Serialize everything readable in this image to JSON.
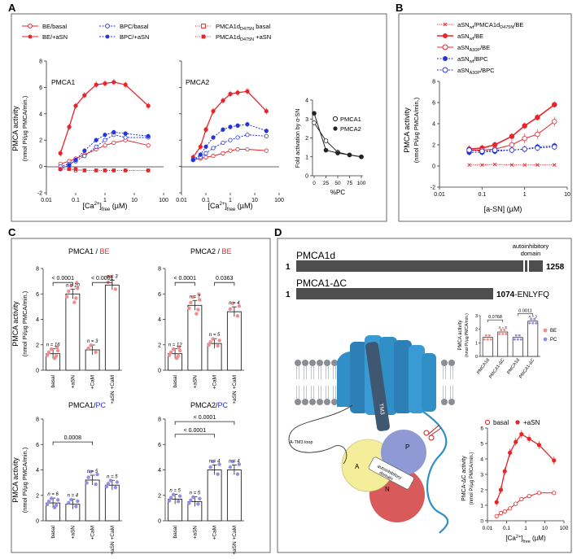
{
  "panel_letters": {
    "A": "A",
    "B": "B",
    "C": "C",
    "D": "D"
  },
  "colors": {
    "red": "#e8242b",
    "blue": "#2434d8",
    "gray": "#555555",
    "dark": "#222222",
    "pink": "#ef8e8e",
    "lilac": "#8f8fe8"
  },
  "panelA": {
    "legend": {
      "be_basal": "BE/basal",
      "be_asn": "BE/+aSN",
      "bpc_basal": "BPC/basal",
      "bpc_asn": "BPC/+aSN",
      "pmca_basal_main": "PMCA1d",
      "pmca_basal_sub": "D475N",
      "pmca_basal_tail": " basal",
      "pmca_asn_main": "PMCA1d",
      "pmca_asn_sub": "D475N",
      "pmca_asn_tail": " +aSN"
    },
    "ylabel1": "PMCA activity",
    "ylabel2": "(nmol Pi/µg PMCA/min.)",
    "xlabel_pre": "[Ca",
    "xlabel_sup": "2+",
    "xlabel_mid": "]",
    "xlabel_sub": "free",
    "xlabel_post": " (µM)",
    "pmca1_label": "PMCA1",
    "pmca2_label": "PMCA2",
    "fold_ylabel": "Fold activation by α-SN",
    "fold_xlabel": "%PC",
    "fold_legend_pmca1": "PMCA1",
    "fold_legend_pmca2": "PMCA2"
  },
  "panelB": {
    "legend": {
      "row1_main": "aSN",
      "row1_sub": "wt",
      "row1_mid": "/PMCA1d",
      "row1_sub2": "D475N",
      "row1_tail": "/BE",
      "row2_main": "aSN",
      "row2_sub": "wt",
      "row2_tail": "/BE",
      "row3_main": "aSN",
      "row3_sub": "A30P",
      "row3_tail": "/BE",
      "row4_main": "aSN",
      "row4_sub": "wt",
      "row4_tail": "/BPC",
      "row5_main": "aSN",
      "row5_sub": "A30P",
      "row5_tail": "/BPC"
    },
    "ylabel1": "PMCA activity",
    "ylabel2": "(nmol Pi/µg PMCA/min.)",
    "xlabel": "[a-SN] (µM)"
  },
  "panelC": {
    "titles": {
      "t1": "PMCA1 / ",
      "t1b": "BE",
      "t2": "PMCA2 / ",
      "t2b": "BE",
      "t3": "PMCA1/",
      "t3b": "PC",
      "t4": "PMCA2/",
      "t4b": "PC"
    },
    "ylabel1": "PMCA activity",
    "ylabel2": "(nmol Pi/µg PMCA/min.)",
    "categories": [
      "basal",
      "+aSN",
      "+CaM",
      "+aSN +CaM"
    ],
    "p_values": {
      "c1a": "< 0.0001",
      "c1b": "< 0.0001",
      "c2a": "< 0.0001",
      "c2b": "0.0363",
      "c3a": "0.0008",
      "c4a": "< 0.0001",
      "c4b": "< 0.0001"
    },
    "n_labels": {
      "c1": [
        "n = 16",
        "n = 10",
        "n = 3",
        "n = 3"
      ],
      "c2": [
        "n = 12",
        "n = 7",
        "n = 5",
        "n = 4"
      ],
      "c3": [
        "n = 6",
        "n = 4",
        "n = 5",
        "n = 5"
      ],
      "c4": [
        "n = 5",
        "n = 5",
        "n = 4",
        "n = 4"
      ]
    }
  },
  "panelD": {
    "pmca1d_label": "PMCA1d",
    "pmca1d_start": "1",
    "pmca1d_end": "1258",
    "autoinhib1": "autoinhibitory",
    "autoinhib2": "domain",
    "dc_label": "PMCA1-ΔC",
    "dc_start": "1",
    "dc_end": "1074",
    "dc_tail": "-ENLYFQ",
    "bar_p1": "0.0768",
    "bar_p2": "0.0011",
    "bar_n_labels": [
      "n = 5",
      "n = 3"
    ],
    "bar_ylabel1": "PMCA activity",
    "bar_ylabel2": "(nmol Pi/µg PMCA/min.)",
    "bar_categories": [
      "PMCA1d",
      "PMCA1-ΔC",
      "PMCA1d",
      "PMCA1-ΔC"
    ],
    "bar_legend_be": "BE",
    "bar_legend_pc": "PC",
    "struct_tm3": "TM3",
    "struct_loop": "A-TM3 loop",
    "struct_A": "A",
    "struct_P": "P",
    "struct_N": "N",
    "struct_auto1": "autoinhibitory",
    "struct_auto2": "domain",
    "dc_curve_legend_basal": "basal",
    "dc_curve_legend_asn": "+aSN",
    "dc_ylabel1": "PMCA-ΔC activity",
    "dc_ylabel2": "(nmol Pi/µg PMCA/min.)"
  },
  "chart_data": [
    {
      "id": "A-PMCA1",
      "type": "line",
      "title": "PMCA1",
      "xscale": "log",
      "xlim": [
        0.01,
        100
      ],
      "ylim": [
        -2,
        8
      ],
      "xticks": [
        "0.01",
        "0.1",
        "1",
        "10",
        "100"
      ],
      "yticks": [
        "-2",
        "0",
        "2",
        "4",
        "6",
        "8"
      ],
      "x": [
        0.03,
        0.06,
        0.1,
        0.2,
        0.5,
        1,
        2,
        5,
        30
      ],
      "series": [
        {
          "name": "BE/basal",
          "values": [
            0.2,
            0.4,
            0.6,
            0.9,
            1.3,
            1.6,
            1.8,
            2.0,
            1.6
          ]
        },
        {
          "name": "BE/+aSN",
          "values": [
            1.0,
            3.0,
            4.6,
            5.4,
            6.2,
            6.3,
            6.4,
            6.2,
            4.6
          ]
        },
        {
          "name": "BPC/basal",
          "values": [
            0.0,
            0.2,
            0.4,
            0.8,
            1.5,
            2.0,
            2.4,
            2.2,
            2.2
          ]
        },
        {
          "name": "BPC/+aSN",
          "values": [
            -0.2,
            0.1,
            0.5,
            1.2,
            2.0,
            2.4,
            2.6,
            2.5,
            2.3
          ]
        },
        {
          "name": "PMCA1dD475N basal",
          "values": [
            -0.2,
            -0.2,
            -0.3,
            -0.3,
            -0.3,
            -0.3,
            -0.3,
            -0.3,
            -0.3
          ]
        },
        {
          "name": "PMCA1dD475N +aSN",
          "values": [
            -0.2,
            -0.2,
            -0.2,
            -0.3,
            -0.3,
            -0.3,
            -0.3,
            -0.3,
            -0.3
          ]
        }
      ]
    },
    {
      "id": "A-PMCA2",
      "type": "line",
      "title": "PMCA2",
      "xscale": "log",
      "xlim": [
        0.01,
        100
      ],
      "ylim": [
        -2,
        8
      ],
      "xticks": [
        "0.01",
        "0.1",
        "1",
        "10",
        "100"
      ],
      "x": [
        0.03,
        0.06,
        0.1,
        0.2,
        0.5,
        1,
        2,
        5,
        30
      ],
      "series": [
        {
          "name": "BE/basal",
          "values": [
            0.5,
            0.6,
            0.7,
            0.8,
            1.0,
            1.2,
            1.3,
            1.3,
            1.2
          ]
        },
        {
          "name": "BE/+aSN",
          "values": [
            0.7,
            1.5,
            2.8,
            4.2,
            5.0,
            5.5,
            5.6,
            5.7,
            4.2
          ]
        },
        {
          "name": "BPC/basal",
          "values": [
            0.5,
            0.7,
            1.0,
            1.4,
            1.8,
            2.0,
            2.2,
            2.4,
            2.3
          ]
        },
        {
          "name": "BPC/+aSN",
          "values": [
            0.5,
            0.9,
            1.5,
            2.2,
            2.8,
            3.0,
            3.1,
            3.2,
            2.7
          ]
        }
      ]
    },
    {
      "id": "A-fold",
      "type": "line",
      "xlabel": "%PC",
      "ylabel": "Fold activation by α-SN",
      "xlim": [
        0,
        100
      ],
      "ylim": [
        0,
        4
      ],
      "xticks": [
        "0",
        "25",
        "50",
        "75",
        "100"
      ],
      "yticks": [
        "0",
        "1",
        "2",
        "3",
        "4"
      ],
      "x": [
        0,
        25,
        50,
        75,
        100
      ],
      "series": [
        {
          "name": "PMCA1",
          "values": [
            2.8,
            1.85,
            1.25,
            1.1,
            1.0
          ]
        },
        {
          "name": "PMCA2",
          "values": [
            3.3,
            1.35,
            1.2,
            1.1,
            1.0
          ]
        }
      ]
    },
    {
      "id": "B",
      "type": "line",
      "xscale": "log",
      "xlim": [
        0.01,
        10
      ],
      "ylim": [
        -2,
        8
      ],
      "xticks": [
        "0.01",
        "0.1",
        "1",
        "10"
      ],
      "yticks": [
        "-2",
        "0",
        "2",
        "4",
        "6",
        "8"
      ],
      "x": [
        0.05,
        0.1,
        0.2,
        0.5,
        1,
        2,
        5
      ],
      "series": [
        {
          "name": "aSNwt/PMCA1dD475N/BE",
          "values": [
            0.1,
            0.1,
            0.15,
            0.1,
            0.1,
            0.1,
            0.1
          ]
        },
        {
          "name": "aSNwt/BE",
          "values": [
            1.6,
            1.7,
            2.0,
            2.8,
            3.8,
            4.6,
            5.8
          ]
        },
        {
          "name": "aSNA30P/BE",
          "values": [
            1.5,
            1.5,
            1.6,
            2.0,
            2.6,
            3.0,
            4.2
          ]
        },
        {
          "name": "aSNwt/BPC",
          "values": [
            1.3,
            1.3,
            1.4,
            1.5,
            1.6,
            1.8,
            1.9
          ]
        },
        {
          "name": "aSNA30P/BPC",
          "values": [
            1.5,
            1.4,
            1.5,
            1.5,
            1.6,
            1.7,
            1.8
          ]
        }
      ]
    },
    {
      "id": "C1",
      "type": "bar",
      "title": "PMCA1 / BE",
      "ylim": [
        0,
        8
      ],
      "yticks": [
        "0",
        "2",
        "4",
        "6",
        "8"
      ],
      "categories": [
        "basal",
        "+aSN",
        "+CaM",
        "+aSN +CaM"
      ],
      "values": [
        1.3,
        6.0,
        1.6,
        6.7
      ]
    },
    {
      "id": "C2",
      "type": "bar",
      "title": "PMCA2 / BE",
      "ylim": [
        0,
        8
      ],
      "yticks": [
        "0",
        "2",
        "4",
        "6",
        "8"
      ],
      "categories": [
        "basal",
        "+aSN",
        "+CaM",
        "+aSN +CaM"
      ],
      "values": [
        1.3,
        5.1,
        2.1,
        4.6
      ]
    },
    {
      "id": "C3",
      "type": "bar",
      "title": "PMCA1/PC",
      "ylim": [
        0,
        8
      ],
      "yticks": [
        "0",
        "2",
        "4",
        "6",
        "8"
      ],
      "categories": [
        "basal",
        "+aSN",
        "+CaM",
        "+aSN +CaM"
      ],
      "values": [
        1.4,
        1.3,
        3.2,
        2.8
      ]
    },
    {
      "id": "C4",
      "type": "bar",
      "title": "PMCA2/PC",
      "ylim": [
        0,
        8
      ],
      "yticks": [
        "0",
        "2",
        "4",
        "6",
        "8"
      ],
      "categories": [
        "basal",
        "+aSN",
        "+CaM",
        "+aSN +CaM"
      ],
      "values": [
        1.7,
        1.5,
        4.0,
        4.0
      ]
    },
    {
      "id": "D-bars",
      "type": "bar",
      "ylim": [
        0,
        3
      ],
      "yticks": [
        "0",
        "1",
        "2",
        "3"
      ],
      "categories": [
        "PMCA1d",
        "PMCA1-ΔC",
        "PMCA1d",
        "PMCA1-ΔC"
      ],
      "values": [
        1.4,
        1.8,
        1.4,
        2.6
      ]
    },
    {
      "id": "D-curve",
      "type": "line",
      "xscale": "log",
      "xlim": [
        0.01,
        100
      ],
      "ylim": [
        0,
        6
      ],
      "xticks": [
        "0.01",
        "0.1",
        "1",
        "10",
        "100"
      ],
      "yticks": [
        "0",
        "1",
        "2",
        "3",
        "4",
        "5",
        "6"
      ],
      "x": [
        0.03,
        0.05,
        0.08,
        0.15,
        0.3,
        0.6,
        1.5,
        5,
        30
      ],
      "series": [
        {
          "name": "basal",
          "values": [
            0.3,
            0.5,
            0.6,
            0.8,
            1.1,
            1.4,
            1.6,
            1.8,
            1.8
          ]
        },
        {
          "name": "+aSN",
          "values": [
            1.2,
            2.0,
            3.2,
            4.4,
            5.1,
            5.6,
            5.3,
            4.9,
            3.9
          ]
        }
      ]
    }
  ]
}
